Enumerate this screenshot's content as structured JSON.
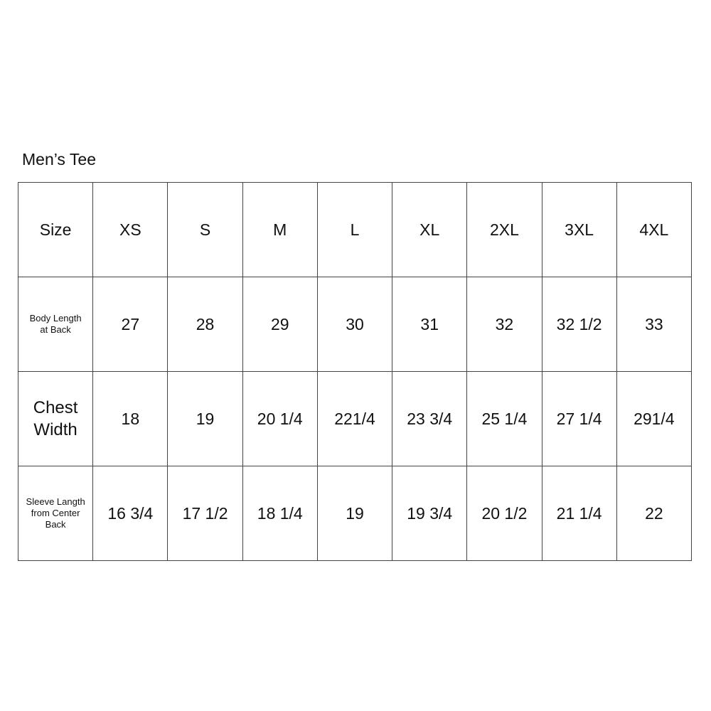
{
  "title": "Men’s Tee",
  "header": {
    "label": "Size",
    "sizes": [
      "XS",
      "S",
      "M",
      "L",
      "XL",
      "2XL",
      "3XL",
      "4XL"
    ]
  },
  "rows": [
    {
      "label": "Body Length\nat Back",
      "values": [
        "27",
        "28",
        "29",
        "30",
        "31",
        "32",
        "32 1/2",
        "33"
      ]
    },
    {
      "label": "Chest\nWidth",
      "values": [
        "18",
        "19",
        "20 1/4",
        "221/4",
        "23 3/4",
        "25 1/4",
        "27 1/4",
        "291/4"
      ]
    },
    {
      "label": "Sleeve Langth\nfrom Center\nBack",
      "values": [
        "16 3/4",
        "17 1/2",
        "18 1/4",
        "19",
        "19 3/4",
        "20 1/2",
        "21 1/4",
        "22"
      ]
    }
  ]
}
